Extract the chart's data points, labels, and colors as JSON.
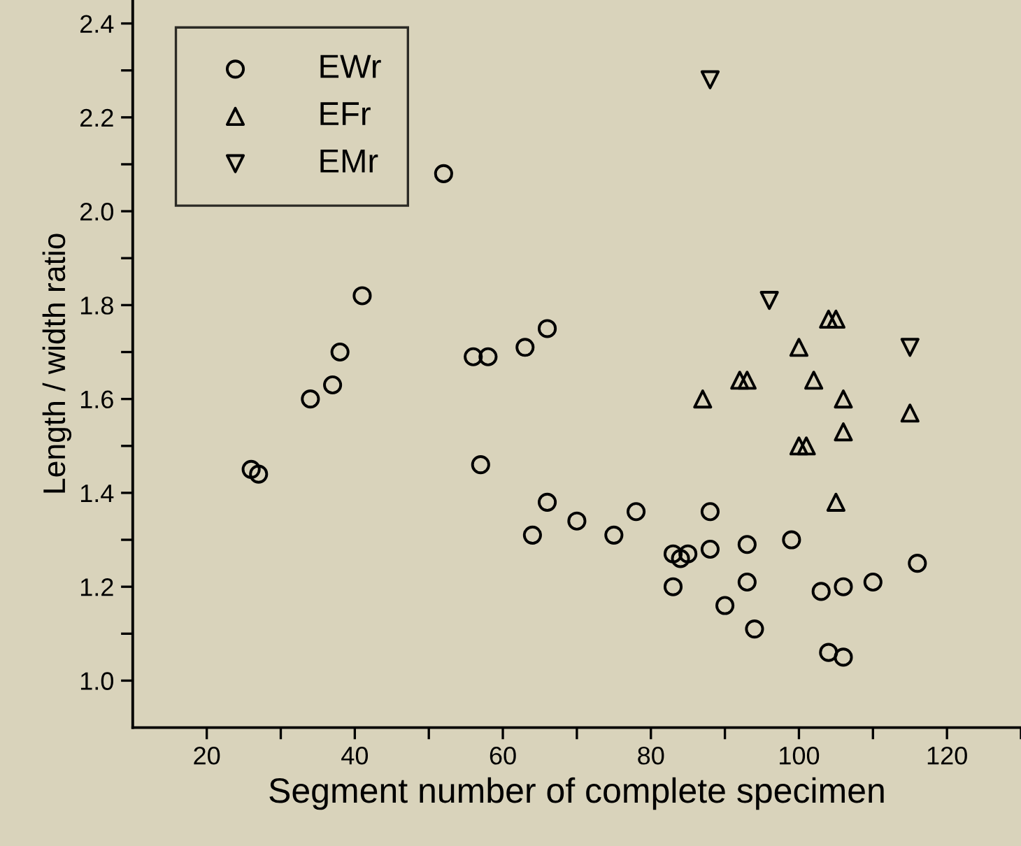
{
  "chart_data": {
    "type": "scatter",
    "xlabel": "Segment number of complete specimen",
    "ylabel": "Length / width ratio",
    "xlim": [
      10,
      130
    ],
    "ylim": [
      0.9,
      2.45
    ],
    "xticks": [
      20,
      {
        "value": 30,
        "label": null
      },
      40,
      {
        "value": 50,
        "label": null
      },
      60,
      {
        "value": 70,
        "label": null
      },
      80,
      {
        "value": 90,
        "label": null
      },
      100,
      {
        "value": 110,
        "label": null
      },
      120,
      {
        "value": 130,
        "label": null
      }
    ],
    "yticks": [
      {
        "value": 1.0,
        "label": "1.0"
      },
      {
        "value": 1.1,
        "label": null
      },
      1.2,
      {
        "value": 1.3,
        "label": null
      },
      1.4,
      {
        "value": 1.5,
        "label": null
      },
      1.6,
      {
        "value": 1.7,
        "label": null
      },
      1.8,
      {
        "value": 1.9,
        "label": null
      },
      {
        "value": 2.0,
        "label": "2.0"
      },
      {
        "value": 2.1,
        "label": null
      },
      2.2,
      {
        "value": 2.3,
        "label": null
      },
      2.4
    ],
    "legend": "top left",
    "grid": false,
    "series": [
      {
        "name": "EWr",
        "color": "#000000",
        "marker": "circle",
        "x": [
          26,
          27,
          34,
          37,
          38,
          41,
          52,
          56,
          58,
          57,
          63,
          66,
          66,
          64,
          70,
          75,
          78,
          83,
          84,
          85,
          83,
          88,
          88,
          90,
          93,
          93,
          94,
          99,
          103,
          104,
          106,
          106,
          110,
          116
        ],
        "values": [
          1.45,
          1.44,
          1.6,
          1.63,
          1.7,
          1.82,
          2.08,
          1.69,
          1.69,
          1.46,
          1.71,
          1.75,
          1.38,
          1.31,
          1.34,
          1.31,
          1.36,
          1.27,
          1.26,
          1.27,
          1.2,
          1.36,
          1.28,
          1.16,
          1.29,
          1.21,
          1.11,
          1.3,
          1.19,
          1.06,
          1.05,
          1.2,
          1.21,
          1.25
        ]
      },
      {
        "name": "EFr",
        "color": "#000000",
        "marker": "triangle",
        "x": [
          87,
          92,
          93,
          100,
          102,
          104,
          105,
          106,
          106,
          100,
          101,
          105,
          115
        ],
        "values": [
          1.6,
          1.64,
          1.64,
          1.71,
          1.64,
          1.77,
          1.77,
          1.6,
          1.53,
          1.5,
          1.5,
          1.38,
          1.57
        ]
      },
      {
        "name": "EMr",
        "color": "#000000",
        "marker": "triangle_down",
        "x": [
          88,
          96,
          115
        ],
        "values": [
          2.28,
          1.81,
          1.71
        ]
      }
    ]
  }
}
